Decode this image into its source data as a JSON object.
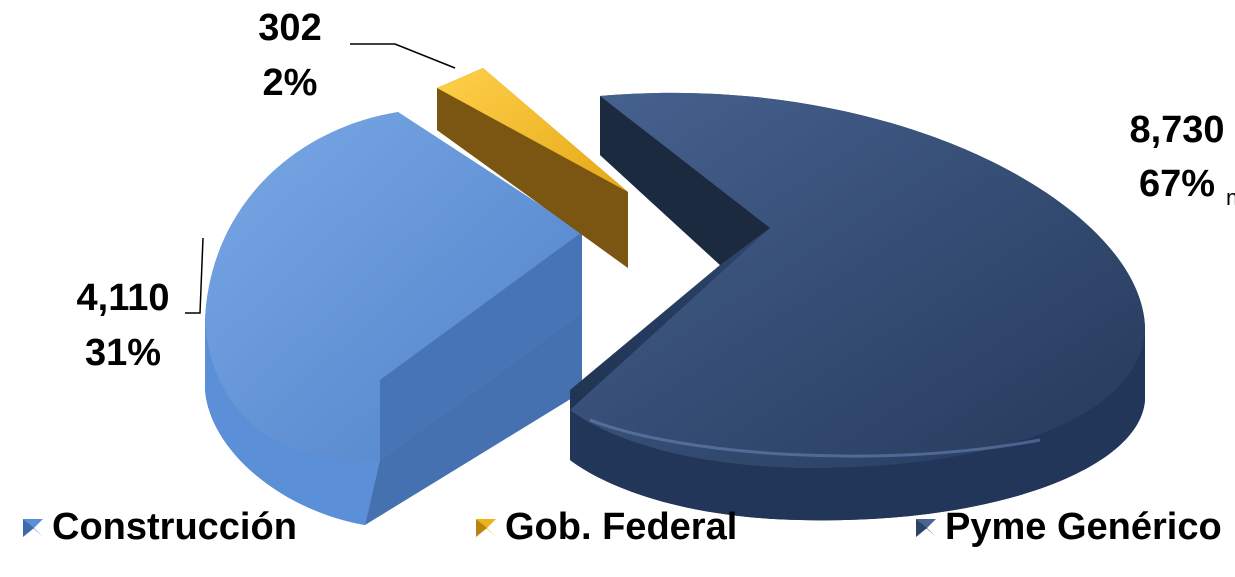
{
  "chart_data": {
    "type": "pie",
    "title": "",
    "slices": [
      {
        "name": "Construcción",
        "value": 4110,
        "value_label": "4,110",
        "percent_label": "31%",
        "color": "#5b8fd6"
      },
      {
        "name": "Gob. Federal",
        "value": 302,
        "value_label": "302",
        "percent_label": "2%",
        "color": "#f0b21a"
      },
      {
        "name": "Pyme Genérico",
        "value": 8730,
        "value_label": "8,730",
        "percent_label": "67%",
        "color": "#2c4366"
      }
    ],
    "legend_position": "bottom",
    "exploded": true,
    "style": "3d"
  },
  "stray_text": "n"
}
